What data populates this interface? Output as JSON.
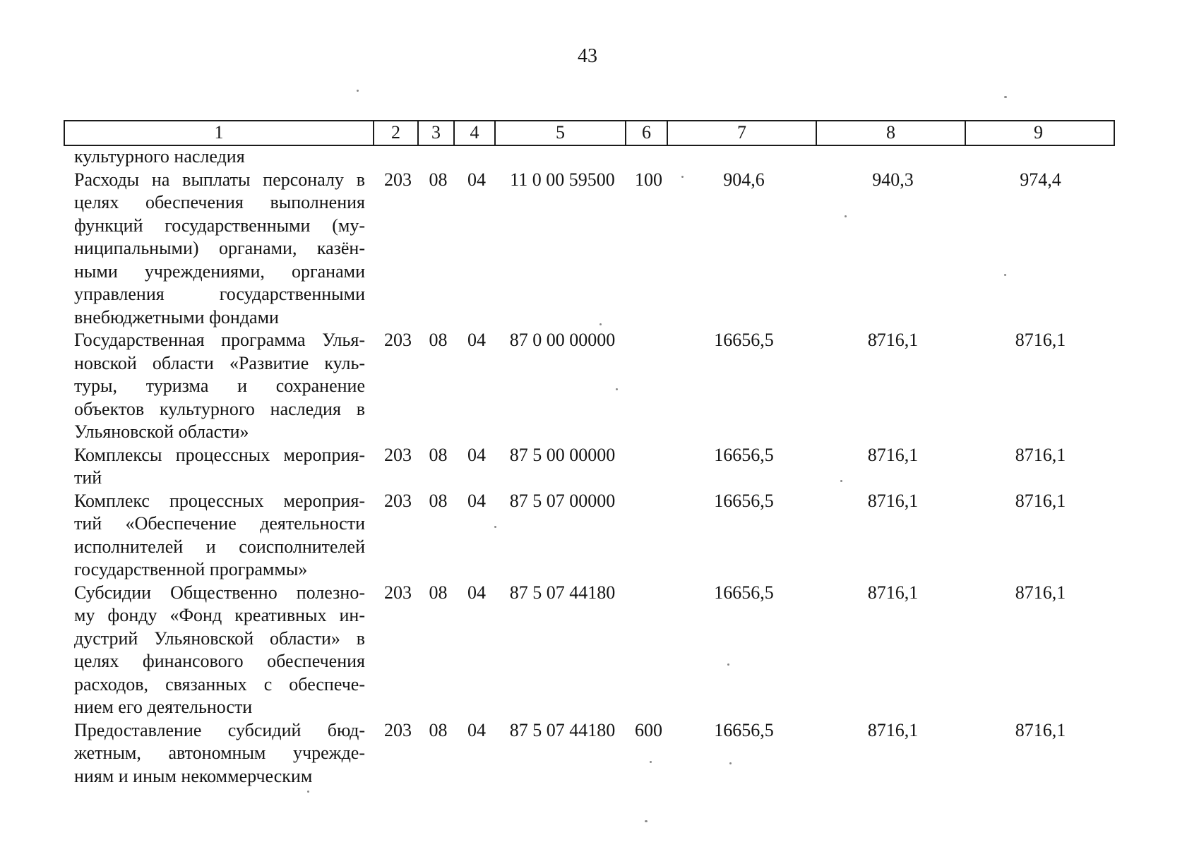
{
  "page_number": "43",
  "table": {
    "header_labels": [
      "1",
      "2",
      "3",
      "4",
      "5",
      "6",
      "7",
      "8",
      "9"
    ],
    "rows": [
      {
        "col1_lines": [
          "культурного наследия"
        ],
        "c2": "",
        "c3": "",
        "c4": "",
        "c5": "",
        "c6": "",
        "c7": "",
        "c8": "",
        "c9": ""
      },
      {
        "col1_lines": [
          "Расходы на выплаты персоналу в",
          "целях обеспечения выполнения",
          "функций государственными (му-",
          "ниципальными) органами, казён-",
          "ными учреждениями, органами",
          "управления государственными",
          "внебюджетными фондами"
        ],
        "c2": "203",
        "c3": "08",
        "c4": "04",
        "c5": "11 0 00 59500",
        "c6": "100",
        "c7": "904,6",
        "c8": "940,3",
        "c9": "974,4"
      },
      {
        "col1_lines": [
          "Государственная программа Улья-",
          "новской области «Развитие куль-",
          "туры, туризма и сохранение",
          "объектов культурного наследия в",
          "Ульяновской области»"
        ],
        "c2": "203",
        "c3": "08",
        "c4": "04",
        "c5": "87 0 00 00000",
        "c6": "",
        "c7": "16656,5",
        "c8": "8716,1",
        "c9": "8716,1"
      },
      {
        "col1_lines": [
          "Комплексы процессных мероприя-",
          "тий"
        ],
        "c2": "203",
        "c3": "08",
        "c4": "04",
        "c5": "87 5 00 00000",
        "c6": "",
        "c7": "16656,5",
        "c8": "8716,1",
        "c9": "8716,1"
      },
      {
        "col1_lines": [
          "Комплекс процессных мероприя-",
          "тий «Обеспечение деятельности",
          "исполнителей и соисполнителей",
          "государственной программы»"
        ],
        "c2": "203",
        "c3": "08",
        "c4": "04",
        "c5": "87 5 07 00000",
        "c6": "",
        "c7": "16656,5",
        "c8": "8716,1",
        "c9": "8716,1"
      },
      {
        "col1_lines": [
          "Субсидии Общественно полезно-",
          "му фонду «Фонд креативных ин-",
          "дустрий Ульяновской области» в",
          "целях финансового обеспечения",
          "расходов, связанных с обеспече-",
          "нием его деятельности"
        ],
        "c2": "203",
        "c3": "08",
        "c4": "04",
        "c5": "87 5 07 44180",
        "c6": "",
        "c7": "16656,5",
        "c8": "8716,1",
        "c9": "8716,1"
      },
      {
        "col1_lines": [
          "Предоставление субсидий бюд-",
          "жетным, автономным учрежде-",
          "ниям и иным некоммерческим"
        ],
        "c2": "203",
        "c3": "08",
        "c4": "04",
        "c5": "87 5 07 44180",
        "c6": "600",
        "c7": "16656,5",
        "c8": "8716,1",
        "c9": "8716,1"
      }
    ]
  }
}
